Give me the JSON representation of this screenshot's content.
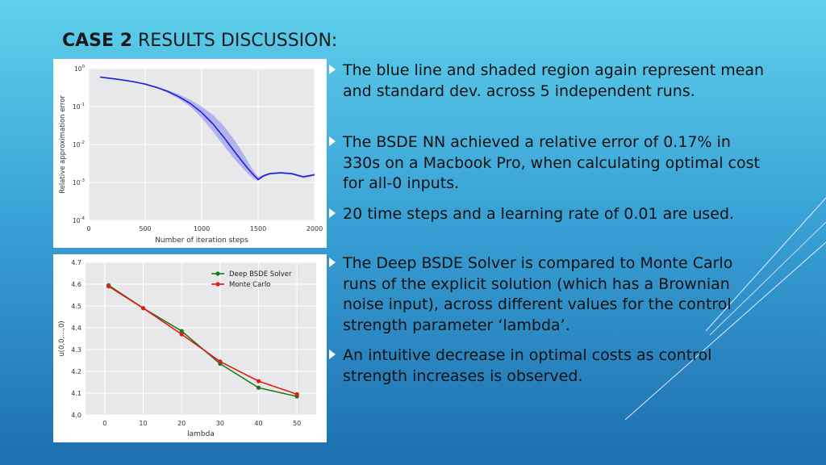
{
  "slide": {
    "title_bold": "CASE 2",
    "title_rest": " RESULTS DISCUSSION:",
    "bullets": [
      "The blue line and shaded region again represent mean and standard dev. across 5  independent runs.",
      "The BSDE NN achieved a relative error of 0.17% in 330s on a Macbook Pro, when calculating optimal cost for all-0 inputs.",
      "20 time steps and a learning rate of 0.01 are used.",
      "The Deep BSDE Solver is compared to Monte Carlo runs of the explicit solution (which has a Brownian noise input), across different values for the control strength parameter ‘lambda’.",
      "An intuitive decrease in optimal costs as control strength increases is observed."
    ]
  },
  "chart_data": [
    {
      "type": "line",
      "xlabel": "Number of iteration steps",
      "ylabel": "Relative approximation error",
      "xlim": [
        0,
        2000
      ],
      "ylim": [
        0.0001,
        1
      ],
      "yscale": "log",
      "x_ticks": [
        "0",
        "500",
        "1000",
        "1500",
        "2000"
      ],
      "y_ticks": [
        "10^-4",
        "10^-3",
        "10^-2",
        "10^-1",
        "10^0"
      ],
      "grid": true,
      "series": [
        {
          "color": "#1f1fdd",
          "x": [
            100,
            200,
            300,
            400,
            500,
            600,
            700,
            800,
            900,
            1000,
            1100,
            1200,
            1300,
            1400,
            1450,
            1500,
            1550,
            1600,
            1700,
            1800,
            1900,
            2000
          ],
          "y": [
            0.6,
            0.55,
            0.5,
            0.45,
            0.39,
            0.32,
            0.25,
            0.18,
            0.12,
            0.07,
            0.035,
            0.015,
            0.006,
            0.0025,
            0.0017,
            0.0012,
            0.0015,
            0.0017,
            0.0018,
            0.0017,
            0.0014,
            0.0016
          ],
          "y_lower": [
            0.6,
            0.55,
            0.5,
            0.45,
            0.39,
            0.31,
            0.23,
            0.16,
            0.1,
            0.05,
            0.022,
            0.009,
            0.0038,
            0.0018,
            0.0013,
            0.0011,
            0.0014,
            0.0016,
            0.0017,
            0.0016,
            0.0013,
            0.0015
          ],
          "y_upper": [
            0.6,
            0.55,
            0.5,
            0.46,
            0.4,
            0.34,
            0.27,
            0.21,
            0.15,
            0.1,
            0.06,
            0.03,
            0.012,
            0.004,
            0.0022,
            0.0014,
            0.0016,
            0.0018,
            0.0019,
            0.0018,
            0.0015,
            0.0017
          ]
        }
      ]
    },
    {
      "type": "line",
      "xlabel": "lambda",
      "ylabel": "u(0,0,...,0)",
      "xlim": [
        -5,
        55
      ],
      "ylim": [
        4.0,
        4.7
      ],
      "x_ticks": [
        "0",
        "10",
        "20",
        "30",
        "40",
        "50"
      ],
      "y_ticks": [
        "4.0",
        "4.1",
        "4.2",
        "4.3",
        "4.4",
        "4.5",
        "4.6",
        "4.7"
      ],
      "grid": true,
      "legend_position": "top-right",
      "series": [
        {
          "name": "Deep BSDE Solver",
          "color": "#1a7a1a",
          "x": [
            1,
            10,
            20,
            30,
            40,
            50
          ],
          "y": [
            4.595,
            4.49,
            4.385,
            4.235,
            4.125,
            4.085
          ]
        },
        {
          "name": "Monte Carlo",
          "color": "#e01b1b",
          "x": [
            1,
            10,
            20,
            30,
            40,
            50
          ],
          "y": [
            4.59,
            4.49,
            4.37,
            4.245,
            4.155,
            4.095
          ]
        }
      ]
    }
  ]
}
